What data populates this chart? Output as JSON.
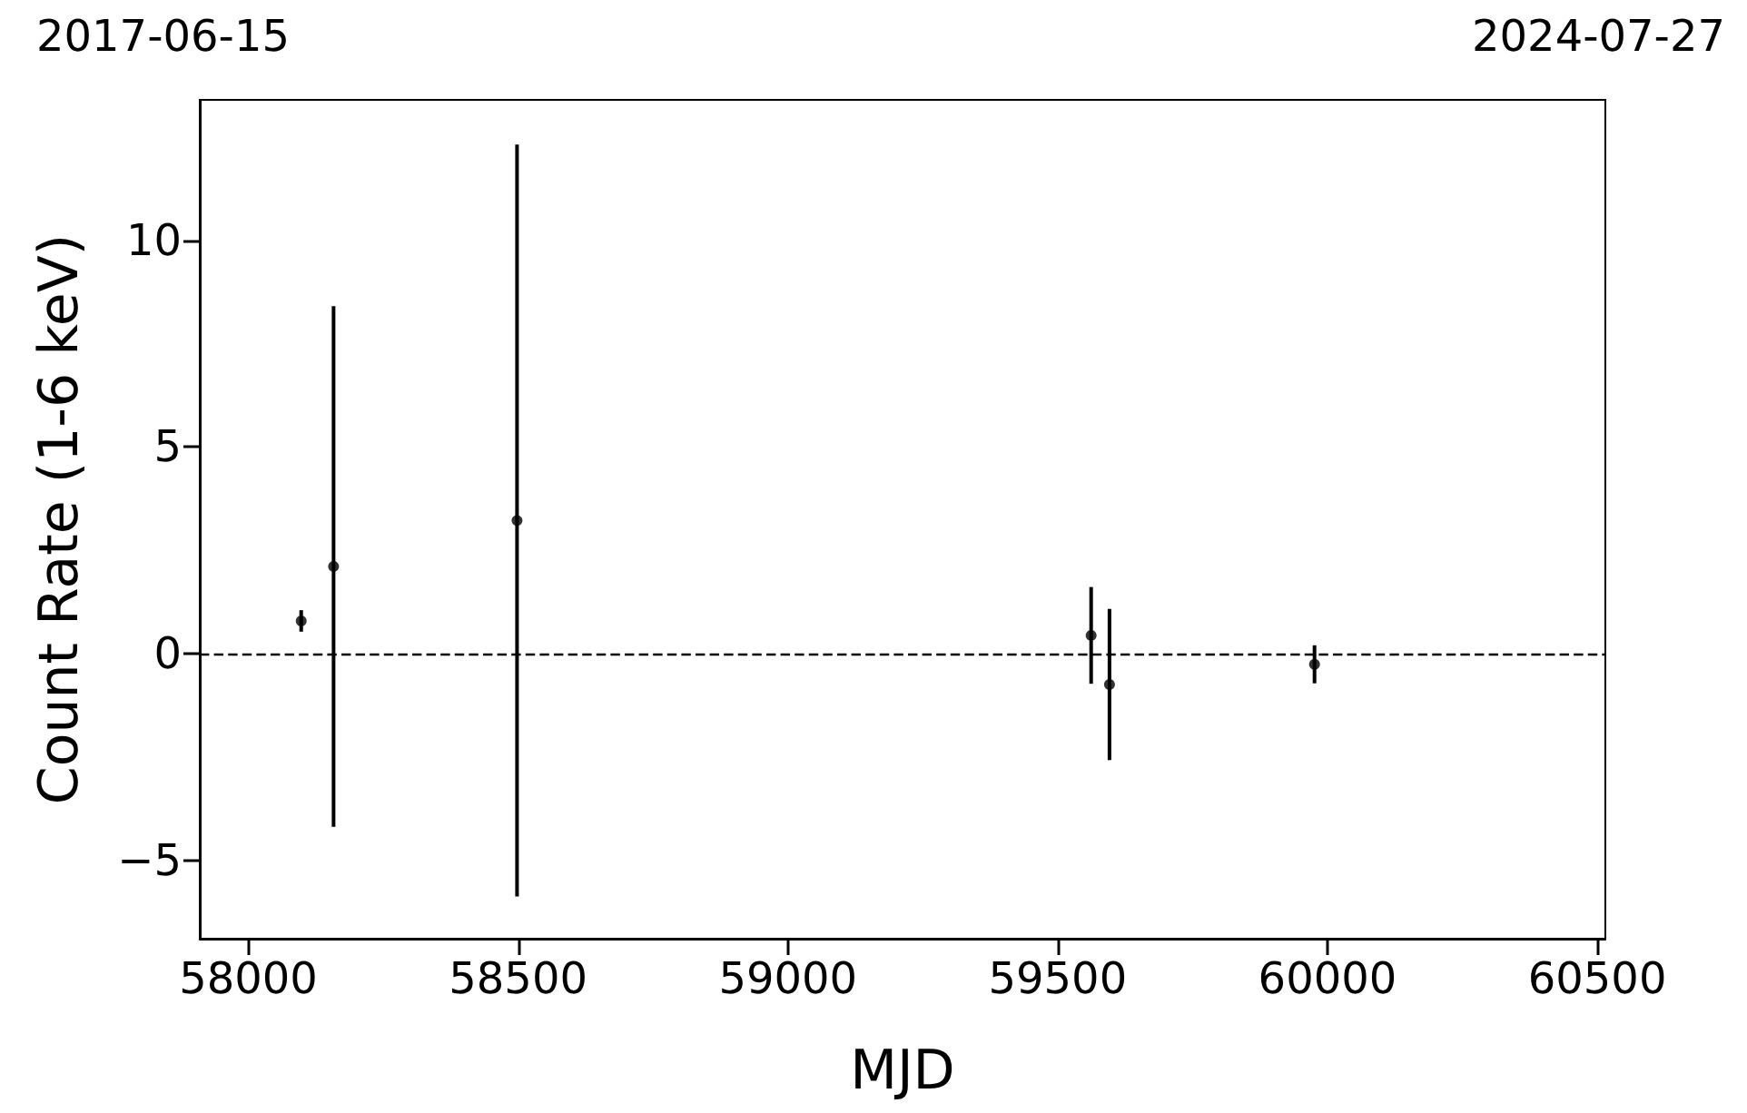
{
  "chart_data": {
    "type": "scatter",
    "xlabel": "MJD",
    "ylabel": "Count Rate (1-6 keV)",
    "x": [
      58098,
      58158,
      58498,
      59562,
      59596,
      59976
    ],
    "values": [
      0.79,
      2.11,
      3.22,
      0.44,
      -0.75,
      -0.26
    ],
    "errors": [
      0.26,
      6.3,
      9.1,
      1.17,
      1.83,
      0.46
    ],
    "color": "#000000",
    "marker": "circle",
    "xlim": [
      57910,
      60515
    ],
    "xticks": [
      58000,
      58500,
      59000,
      59500,
      60000,
      60500
    ],
    "ylim": [
      -6.9,
      13.4
    ],
    "yticks": [
      -5,
      0,
      5,
      10
    ],
    "grid": false,
    "ref_lines": [
      {
        "axis": "y",
        "value": 0,
        "color": "#000000",
        "line_style": "dashed"
      }
    ],
    "annotations": [
      "2017-06-15",
      "2024-07-27"
    ]
  }
}
